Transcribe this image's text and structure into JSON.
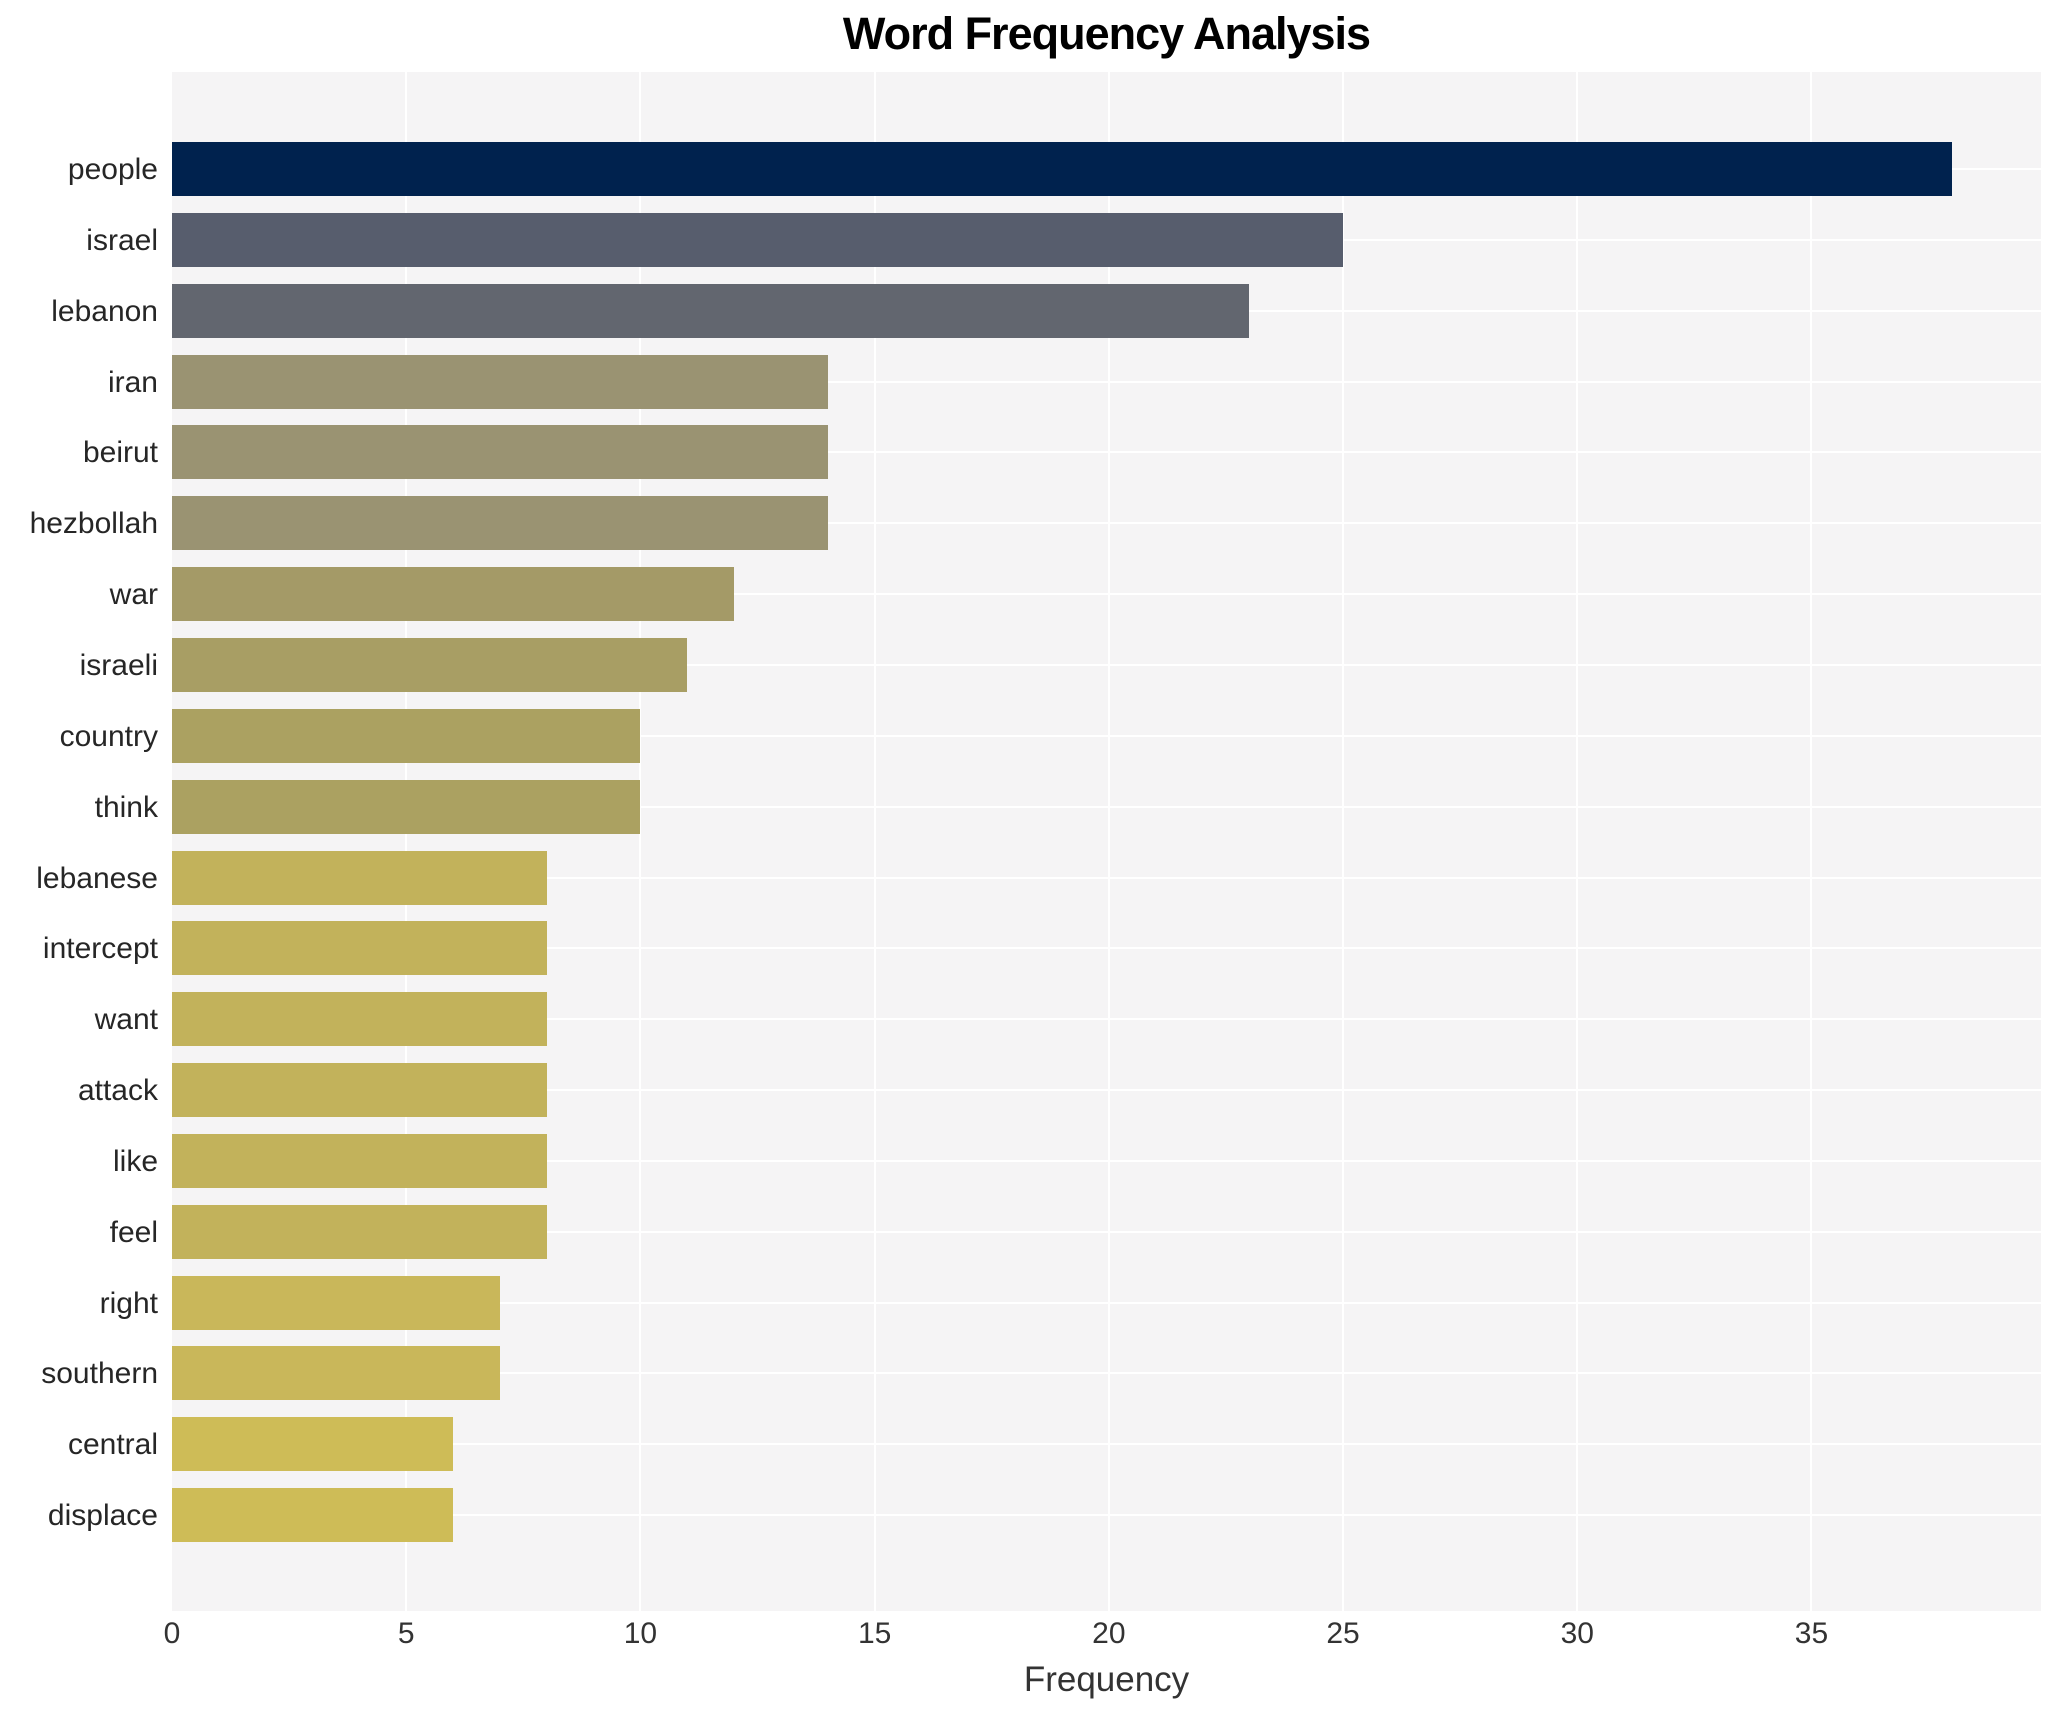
{
  "title": "Word Frequency Analysis",
  "xlabel": "Frequency",
  "chart_data": {
    "type": "bar",
    "orientation": "horizontal",
    "title": "Word Frequency Analysis",
    "xlabel": "Frequency",
    "ylabel": "",
    "categories": [
      "people",
      "israel",
      "lebanon",
      "iran",
      "beirut",
      "hezbollah",
      "war",
      "israeli",
      "country",
      "think",
      "lebanese",
      "intercept",
      "want",
      "attack",
      "like",
      "feel",
      "right",
      "southern",
      "central",
      "displace"
    ],
    "values": [
      38,
      25,
      23,
      14,
      14,
      14,
      12,
      11,
      10,
      10,
      8,
      8,
      8,
      8,
      8,
      8,
      7,
      7,
      6,
      6
    ],
    "bar_colors": [
      "#00224e",
      "#575d6d",
      "#62666f",
      "#9a9372",
      "#9a9372",
      "#9a9372",
      "#a49a67",
      "#a89e64",
      "#aba161",
      "#aba161",
      "#c2b25b",
      "#c2b25b",
      "#c2b25b",
      "#c2b25b",
      "#c2b25b",
      "#c2b25b",
      "#c9b75a",
      "#c9b75a",
      "#cebc57",
      "#cebc57"
    ],
    "colormap": "cividis",
    "xlim": [
      0,
      39.9
    ],
    "xticks": [
      0,
      5,
      10,
      15,
      20,
      25,
      30,
      35
    ],
    "grid": true,
    "legend": false,
    "plot_bg_color": "#f5f4f5",
    "grid_color": "#ffffff",
    "title_color": "#000000",
    "tick_label_color": "#333333",
    "category_label_color": "#262626"
  }
}
